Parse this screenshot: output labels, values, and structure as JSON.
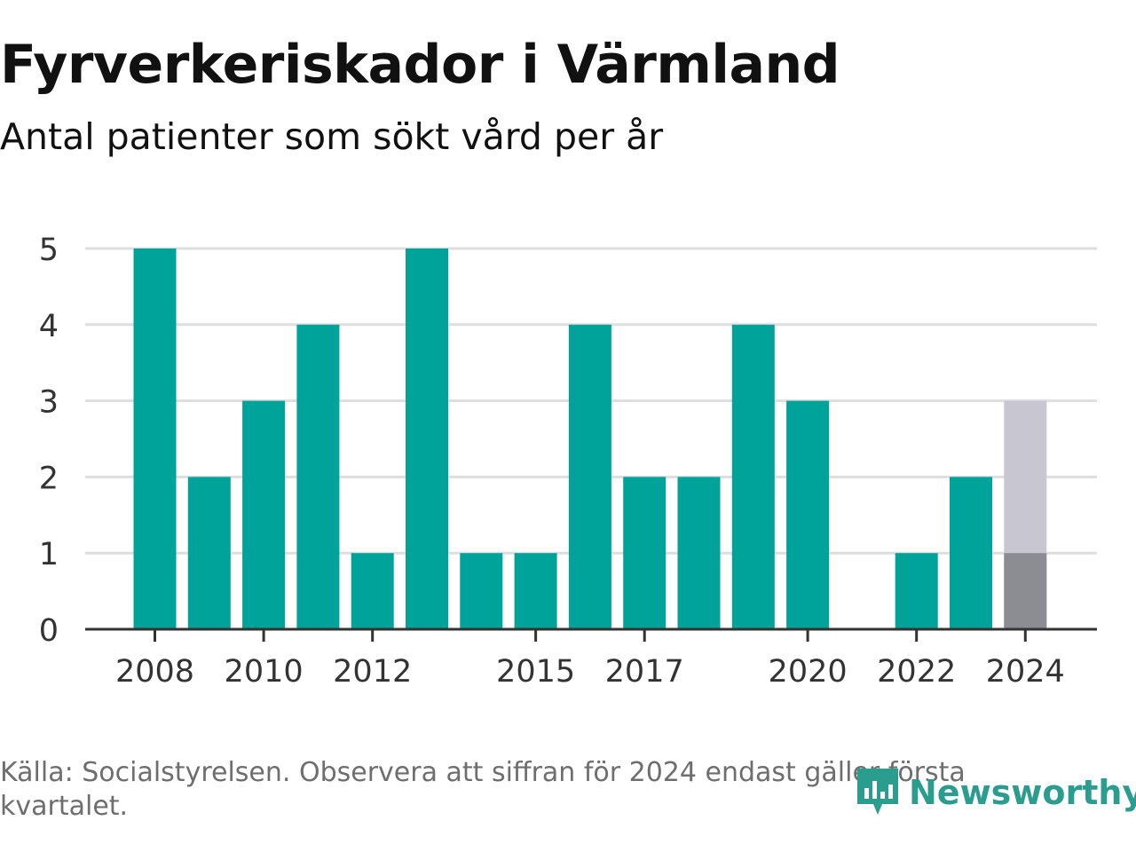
{
  "header": {
    "title": "Fyrverkeriskador i Värmland",
    "subtitle": "Antal patienter som sökt vård per år"
  },
  "footer": {
    "source": "Källa: Socialstyrelsen. Observera att siffran för 2024 endast gäller första kvartalet.",
    "brand": "Newsworthy"
  },
  "colors": {
    "bar": "#00a39a",
    "highlight": "#8c8d92",
    "ghost": "#c8c7d1",
    "grid": "#dedede",
    "axis": "#333333",
    "brand": "#2a9d8f"
  },
  "chart_data": {
    "type": "bar",
    "title": "Fyrverkeriskador i Värmland",
    "subtitle": "Antal patienter som sökt vård per år",
    "categories": [
      "2008",
      "2009",
      "2010",
      "2011",
      "2012",
      "2013",
      "2014",
      "2015",
      "2016",
      "2017",
      "2018",
      "2019",
      "2020",
      "2021",
      "2022",
      "2023",
      "2024"
    ],
    "values": [
      5,
      2,
      3,
      4,
      1,
      5,
      1,
      1,
      4,
      2,
      2,
      4,
      3,
      0,
      1,
      2,
      1
    ],
    "ghost_values": [
      0,
      0,
      0,
      0,
      0,
      0,
      0,
      0,
      0,
      0,
      0,
      0,
      0,
      0,
      0,
      0,
      3
    ],
    "x_tick_labels": [
      "2008",
      "2010",
      "2012",
      "2015",
      "2017",
      "2020",
      "2022",
      "2024"
    ],
    "y_ticks": [
      0,
      1,
      2,
      3,
      4,
      5
    ],
    "ylim": [
      0,
      5
    ],
    "xlabel": "",
    "ylabel": "",
    "grid": true,
    "legend": "none"
  }
}
